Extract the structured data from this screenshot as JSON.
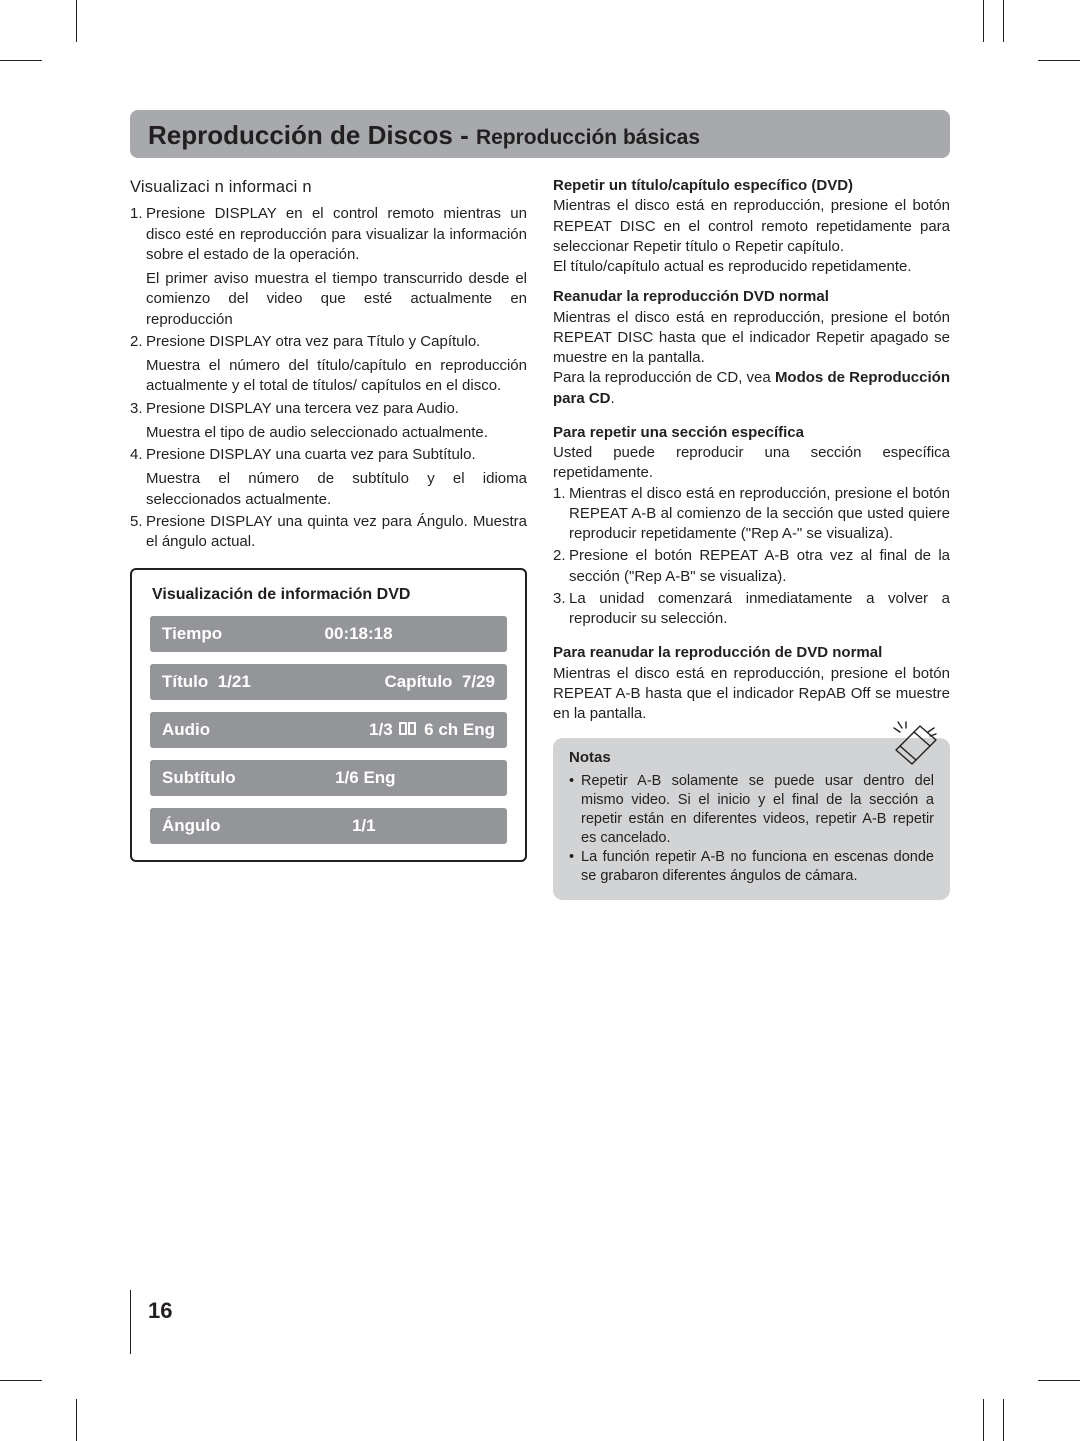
{
  "colors": {
    "title_bar_bg": "#a7a9ac",
    "text": "#231f20",
    "dvd_row_bg": "#939598",
    "dvd_row_text": "#ffffff",
    "notes_bg": "#d1d3d4"
  },
  "header": {
    "main": "Reproducción de Discos",
    "separator": " - ",
    "sub": "Reproducción básicas"
  },
  "left": {
    "heading": "Visualizaci  n informaci  n",
    "items": [
      {
        "n": "1.",
        "t": "Presione DISPLAY en el control remoto mientras un disco esté en reproducción para visualizar la información sobre el estado de la operación.",
        "sub": "El primer aviso muestra el tiempo transcurrido desde el comienzo del video que esté actualmente en reproducción"
      },
      {
        "n": "2.",
        "t": "Presione DISPLAY otra vez para Título y Capítulo.",
        "sub": "Muestra el número del título/capítulo en reproducción actualmente y el total de títulos/ capítulos en el disco."
      },
      {
        "n": "3.",
        "t": "Presione DISPLAY una tercera vez para Audio.",
        "sub": "Muestra el tipo de audio seleccionado actualmente."
      },
      {
        "n": "4.",
        "t": "Presione DISPLAY una cuarta vez para Subtítulo.",
        "sub": "Muestra el número de subtítulo y el idioma seleccionados actualmente."
      },
      {
        "n": "5.",
        "t": "Presione DISPLAY una quinta vez para Ángulo. Muestra el ángulo actual.",
        "sub": ""
      }
    ]
  },
  "dvd_panel": {
    "title": "Visualización de información DVD",
    "rows": {
      "tiempo": {
        "label": "Tiempo",
        "value": "00:18:18"
      },
      "titulo": {
        "label": "Título",
        "value": "1/21",
        "label2": "Capítulo",
        "value2": "7/29"
      },
      "audio": {
        "label": "Audio",
        "value_pre": "1/3",
        "value_post": "6 ch  Eng"
      },
      "subtitulo": {
        "label": "Subtítulo",
        "value": "1/6 Eng"
      },
      "angulo": {
        "label": "Ángulo",
        "value": "1/1"
      }
    }
  },
  "right": {
    "s1": {
      "h": "Repetir un título/capítulo específico (DVD)",
      "p1": "Mientras el disco está en reproducción, presione el botón REPEAT DISC en el control remoto repetidamente para seleccionar Repetir título o Repetir capítulo.",
      "p2": "El título/capítulo actual es reproducido repetidamente."
    },
    "s2": {
      "h": "Reanudar la reproducción DVD normal",
      "p1": "Mientras el disco está en reproducción, presione el botón REPEAT DISC hasta que el indicador Repetir apagado se muestre en la pantalla.",
      "p2_a": "Para la reproducción de CD, vea ",
      "p2_b": "Modos de Reproducción para CD",
      "p2_c": "."
    },
    "s3": {
      "h": "Para repetir una sección específica",
      "p": "Usted puede reproducir una sección específica repetidamente.",
      "items": [
        {
          "n": "1.",
          "t": "Mientras el disco está en reproducción, presione el botón REPEAT A-B al comienzo de la sección que usted quiere reproducir repetidamente (\"Rep A-\" se visualiza)."
        },
        {
          "n": "2.",
          "t": "Presione el botón REPEAT A-B otra vez al final de la sección (\"Rep A-B\" se visualiza)."
        },
        {
          "n": "3.",
          "t": "La unidad comenzará inmediatamente a volver a reproducir su selección."
        }
      ]
    },
    "s4": {
      "h": "Para reanudar la reproducción de DVD normal",
      "p": "Mientras el disco está en reproducción, presione el botón REPEAT A-B hasta que el indicador RepAB Off se muestre en la pantalla."
    },
    "notes": {
      "h": "Notas",
      "items": [
        "Repetir A-B solamente se puede usar dentro del mismo video. Si el inicio y el final de la sección a repetir están en diferentes videos, repetir A-B repetir es cancelado.",
        "La función repetir A-B no funciona en escenas donde se grabaron diferentes ángulos de cámara."
      ]
    }
  },
  "page_number": "16"
}
